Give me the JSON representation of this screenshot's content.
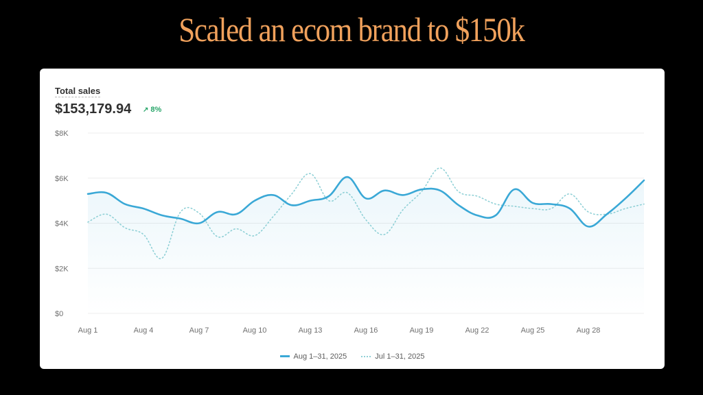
{
  "headline": "Scaled an ecom brand to $150k",
  "card": {
    "metric_title": "Total sales",
    "metric_value": "$153,179.94",
    "delta": "8%",
    "delta_icon": "arrow-up-right-icon"
  },
  "colors": {
    "background": "#000000",
    "headline": "#f0a15c",
    "current_series": "#3aa8d6",
    "previous_series": "#8fd0d6",
    "delta_positive": "#29a66a",
    "grid": "#ececec"
  },
  "chart_data": {
    "type": "line",
    "ylim": [
      0,
      8000
    ],
    "y_ticks": [
      {
        "value": 0,
        "label": "$0"
      },
      {
        "value": 2000,
        "label": "$2K"
      },
      {
        "value": 4000,
        "label": "$4K"
      },
      {
        "value": 6000,
        "label": "$6K"
      },
      {
        "value": 8000,
        "label": "$8K"
      }
    ],
    "x_tick_labels": [
      "Aug 1",
      "Aug 4",
      "Aug 7",
      "Aug 10",
      "Aug 13",
      "Aug 16",
      "Aug 19",
      "Aug 22",
      "Aug 25",
      "Aug 28"
    ],
    "x_tick_days": [
      1,
      4,
      7,
      10,
      13,
      16,
      19,
      22,
      25,
      28
    ],
    "days": [
      1,
      2,
      3,
      4,
      5,
      6,
      7,
      8,
      9,
      10,
      11,
      12,
      13,
      14,
      15,
      16,
      17,
      18,
      19,
      20,
      21,
      22,
      23,
      24,
      25,
      26,
      27,
      28,
      29,
      30,
      31
    ],
    "grid": true,
    "legend_position": "bottom-center",
    "series": [
      {
        "name": "Aug 1–31, 2025",
        "style": "solid",
        "values": [
          5300,
          5350,
          4850,
          4650,
          4350,
          4200,
          4000,
          4500,
          4400,
          5000,
          5250,
          4800,
          5000,
          5200,
          6050,
          5100,
          5450,
          5250,
          5500,
          5450,
          4800,
          4350,
          4350,
          5500,
          4900,
          4850,
          4650,
          3850,
          4400,
          5100,
          5900
        ]
      },
      {
        "name": "Jul 1–31, 2025",
        "style": "dotted",
        "values": [
          4050,
          4400,
          3800,
          3500,
          2450,
          4500,
          4450,
          3400,
          3750,
          3450,
          4300,
          5300,
          6200,
          5000,
          5350,
          4150,
          3500,
          4600,
          5400,
          6450,
          5400,
          5200,
          4850,
          4750,
          4650,
          4650,
          5300,
          4500,
          4400,
          4650,
          4850
        ]
      }
    ]
  }
}
